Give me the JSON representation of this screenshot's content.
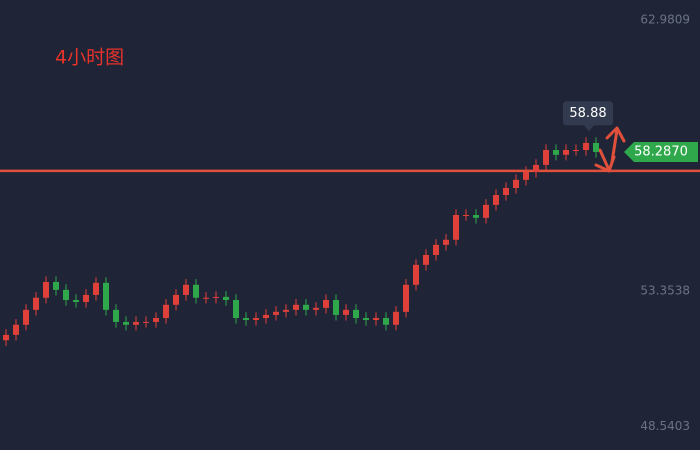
{
  "chart_data": {
    "type": "candlestick",
    "title": "4小时图",
    "ylim": [
      47.7,
      63.69
    ],
    "yticks": [
      62.9809,
      53.3538,
      48.5403
    ],
    "up_color": "#e0403a",
    "down_color": "#2ea84a",
    "hline": 57.62,
    "hline_color": "#e0503a",
    "last_price": {
      "value": 58.287,
      "label": "58.2870"
    },
    "last_price_color": "#2ea84a",
    "high_label": 58.88,
    "open": [
      51.6,
      51.79,
      52.15,
      52.68,
      53.11,
      53.67,
      53.39,
      53.03,
      52.96,
      53.21,
      53.64,
      52.68,
      52.25,
      52.15,
      52.25,
      52.25,
      52.39,
      52.86,
      53.21,
      53.57,
      53.11,
      53.11,
      53.14,
      53.03,
      52.39,
      52.32,
      52.39,
      52.5,
      52.61,
      52.68,
      52.86,
      52.68,
      52.75,
      53.03,
      52.5,
      52.68,
      52.39,
      52.32,
      52.39,
      52.15,
      52.61,
      53.57,
      54.28,
      54.63,
      54.99,
      55.17,
      56.05,
      56.05,
      55.95,
      56.41,
      56.76,
      57.01,
      57.3,
      57.58,
      57.83,
      58.36,
      58.19,
      58.36,
      58.36,
      58.61
    ],
    "high": [
      51.99,
      52.35,
      52.88,
      53.31,
      53.87,
      53.87,
      53.59,
      53.23,
      53.41,
      53.84,
      53.84,
      52.88,
      52.45,
      52.45,
      52.45,
      52.59,
      53.06,
      53.41,
      53.77,
      53.77,
      53.31,
      53.34,
      53.34,
      53.23,
      52.59,
      52.59,
      52.7,
      52.81,
      52.88,
      53.06,
      53.06,
      52.95,
      53.23,
      53.23,
      52.88,
      52.88,
      52.59,
      52.59,
      52.59,
      52.81,
      53.77,
      54.48,
      54.83,
      55.19,
      55.37,
      56.25,
      56.25,
      56.25,
      56.61,
      56.96,
      57.21,
      57.5,
      57.78,
      58.03,
      58.56,
      58.56,
      58.56,
      58.56,
      58.81,
      58.81
    ],
    "low": [
      51.4,
      51.59,
      51.95,
      52.48,
      52.91,
      53.19,
      52.83,
      52.76,
      52.76,
      53.01,
      52.48,
      52.05,
      51.95,
      51.95,
      52.05,
      52.05,
      52.19,
      52.66,
      53.01,
      52.91,
      52.91,
      52.91,
      52.83,
      52.19,
      52.12,
      52.12,
      52.19,
      52.3,
      52.41,
      52.48,
      52.48,
      52.48,
      52.55,
      52.3,
      52.3,
      52.19,
      52.12,
      52.12,
      51.95,
      51.95,
      52.41,
      53.37,
      54.08,
      54.43,
      54.79,
      54.97,
      55.85,
      55.75,
      55.75,
      56.21,
      56.56,
      56.81,
      57.1,
      57.38,
      57.63,
      57.99,
      57.99,
      58.16,
      58.16,
      58.09
    ],
    "close": [
      51.79,
      52.15,
      52.68,
      53.11,
      53.67,
      53.39,
      53.03,
      52.96,
      53.21,
      53.64,
      52.68,
      52.25,
      52.15,
      52.25,
      52.25,
      52.39,
      52.86,
      53.21,
      53.57,
      53.11,
      53.11,
      53.14,
      53.03,
      52.39,
      52.32,
      52.39,
      52.5,
      52.61,
      52.68,
      52.86,
      52.68,
      52.75,
      53.03,
      52.5,
      52.68,
      52.39,
      52.32,
      52.39,
      52.15,
      52.61,
      53.57,
      54.28,
      54.63,
      54.99,
      55.17,
      56.05,
      56.05,
      55.95,
      56.41,
      56.76,
      57.01,
      57.3,
      57.58,
      57.83,
      58.36,
      58.19,
      58.36,
      58.36,
      58.61,
      58.29
    ]
  }
}
